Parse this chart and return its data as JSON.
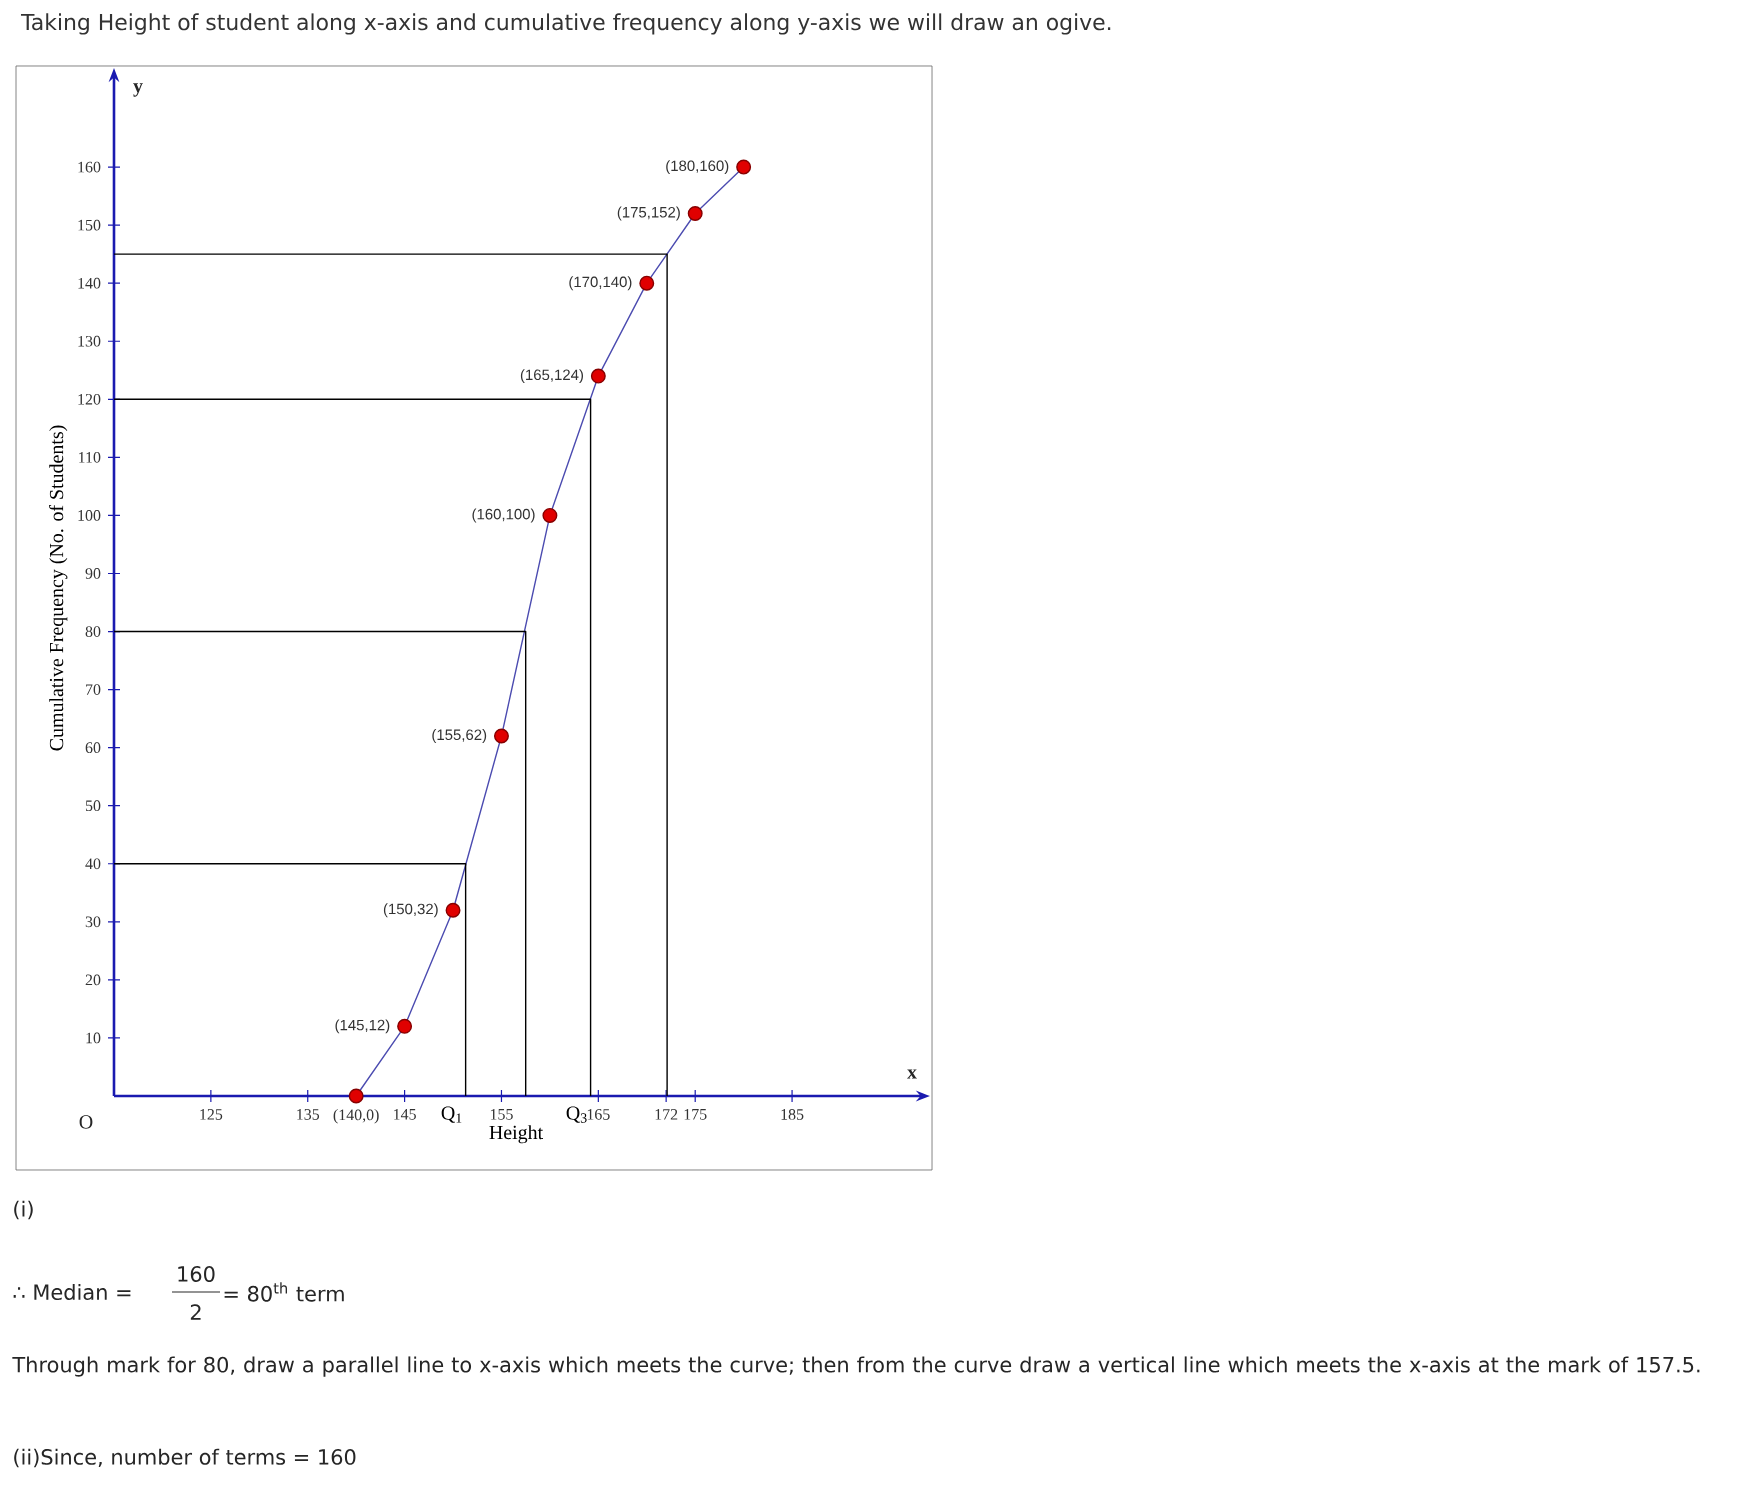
{
  "chart_data": {
    "type": "line",
    "title": "Taking Height of student along x-axis and cumulative frequency along y-axis we will draw an ogive.",
    "xlabel": "Height",
    "ylabel": "Cumulative Frequency (No. of Students)",
    "xlim": [
      115,
      198
    ],
    "ylim": [
      0,
      175
    ],
    "xticks": [
      125,
      135,
      {
        "value": 140,
        "label": "(140,0)"
      },
      145,
      155,
      165,
      172,
      175,
      185
    ],
    "yticks": [
      10,
      20,
      30,
      40,
      50,
      60,
      70,
      80,
      90,
      100,
      110,
      120,
      130,
      140,
      150,
      160
    ],
    "marker": "circle",
    "line_style": "solid",
    "series": [
      {
        "color": "#4b4bb0",
        "x": [
          140,
          145,
          150,
          155,
          160,
          165,
          170,
          175,
          180
        ],
        "values": [
          0,
          12,
          32,
          62,
          100,
          124,
          140,
          152,
          160
        ]
      },
      {
        "color": "#000000",
        "marker": "none",
        "x": [
          115,
          151.3,
          151.3
        ],
        "values": [
          40,
          40,
          0
        ]
      },
      {
        "color": "#000000",
        "marker": "none",
        "x": [
          115,
          157.5,
          157.5
        ],
        "values": [
          80,
          80,
          0
        ]
      },
      {
        "color": "#000000",
        "marker": "none",
        "x": [
          115,
          164.2,
          164.2
        ],
        "values": [
          120,
          120,
          0
        ]
      },
      {
        "color": "#000000",
        "marker": "none",
        "x": [
          115,
          172.1,
          172.1
        ],
        "values": [
          145,
          145,
          0
        ]
      }
    ],
    "annotations": [
      {
        "text": "Q$_{1}$",
        "x": 151.3,
        "y": 0
      },
      {
        "text": "Q$_{3}$",
        "x": 164.2,
        "y": 0
      },
      {
        "text": "(145,12)",
        "x": 145,
        "y": 12
      },
      {
        "text": "(150,32)",
        "x": 150,
        "y": 32
      },
      {
        "text": "(155,62)",
        "x": 155,
        "y": 62
      },
      {
        "text": "(160,100)",
        "x": 160,
        "y": 100
      },
      {
        "text": "(165,124)",
        "x": 165,
        "y": 124
      },
      {
        "text": "(170,140)",
        "x": 170,
        "y": 140
      },
      {
        "text": "(175,152)",
        "x": 175,
        "y": 152
      },
      {
        "text": "(180,160)",
        "x": 180,
        "y": 160
      },
      "O",
      "x",
      "y",
      "(i)",
      "∴ Median =",
      "160",
      "2",
      "= 80$^{th}$ term",
      "Through mark for 80, draw a parallel line to x-axis which meets the curve; then from the curve draw a vertical line which meets the x-axis at the mark of 157.5.",
      "(ii)Since, number of terms = 160"
    ]
  }
}
